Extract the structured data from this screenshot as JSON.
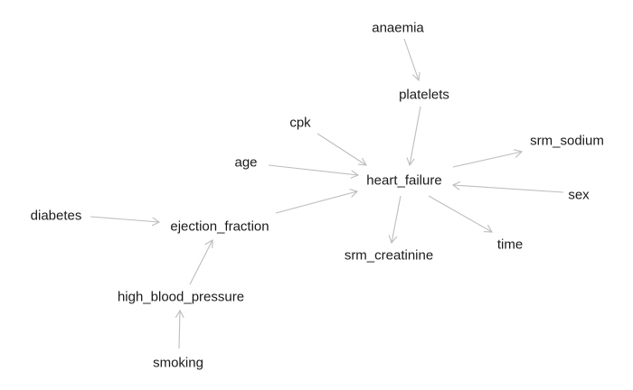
{
  "diagram": {
    "type": "directed-graph",
    "nodes": {
      "anaemia": "anaemia",
      "platelets": "platelets",
      "cpk": "cpk",
      "age": "age",
      "heart_failure": "heart_failure",
      "srm_sodium": "srm_sodium",
      "sex": "sex",
      "diabetes": "diabetes",
      "ejection_fraction": "ejection_fraction",
      "srm_creatinine": "srm_creatinine",
      "time": "time",
      "high_blood_pressure": "high_blood_pressure",
      "smoking": "smoking"
    },
    "edges": [
      {
        "from": "anaemia",
        "to": "platelets"
      },
      {
        "from": "platelets",
        "to": "heart_failure"
      },
      {
        "from": "cpk",
        "to": "heart_failure"
      },
      {
        "from": "age",
        "to": "heart_failure"
      },
      {
        "from": "ejection_fraction",
        "to": "heart_failure"
      },
      {
        "from": "sex",
        "to": "heart_failure"
      },
      {
        "from": "heart_failure",
        "to": "srm_sodium"
      },
      {
        "from": "heart_failure",
        "to": "srm_creatinine"
      },
      {
        "from": "heart_failure",
        "to": "time"
      },
      {
        "from": "diabetes",
        "to": "ejection_fraction"
      },
      {
        "from": "high_blood_pressure",
        "to": "ejection_fraction"
      },
      {
        "from": "smoking",
        "to": "high_blood_pressure"
      }
    ]
  }
}
